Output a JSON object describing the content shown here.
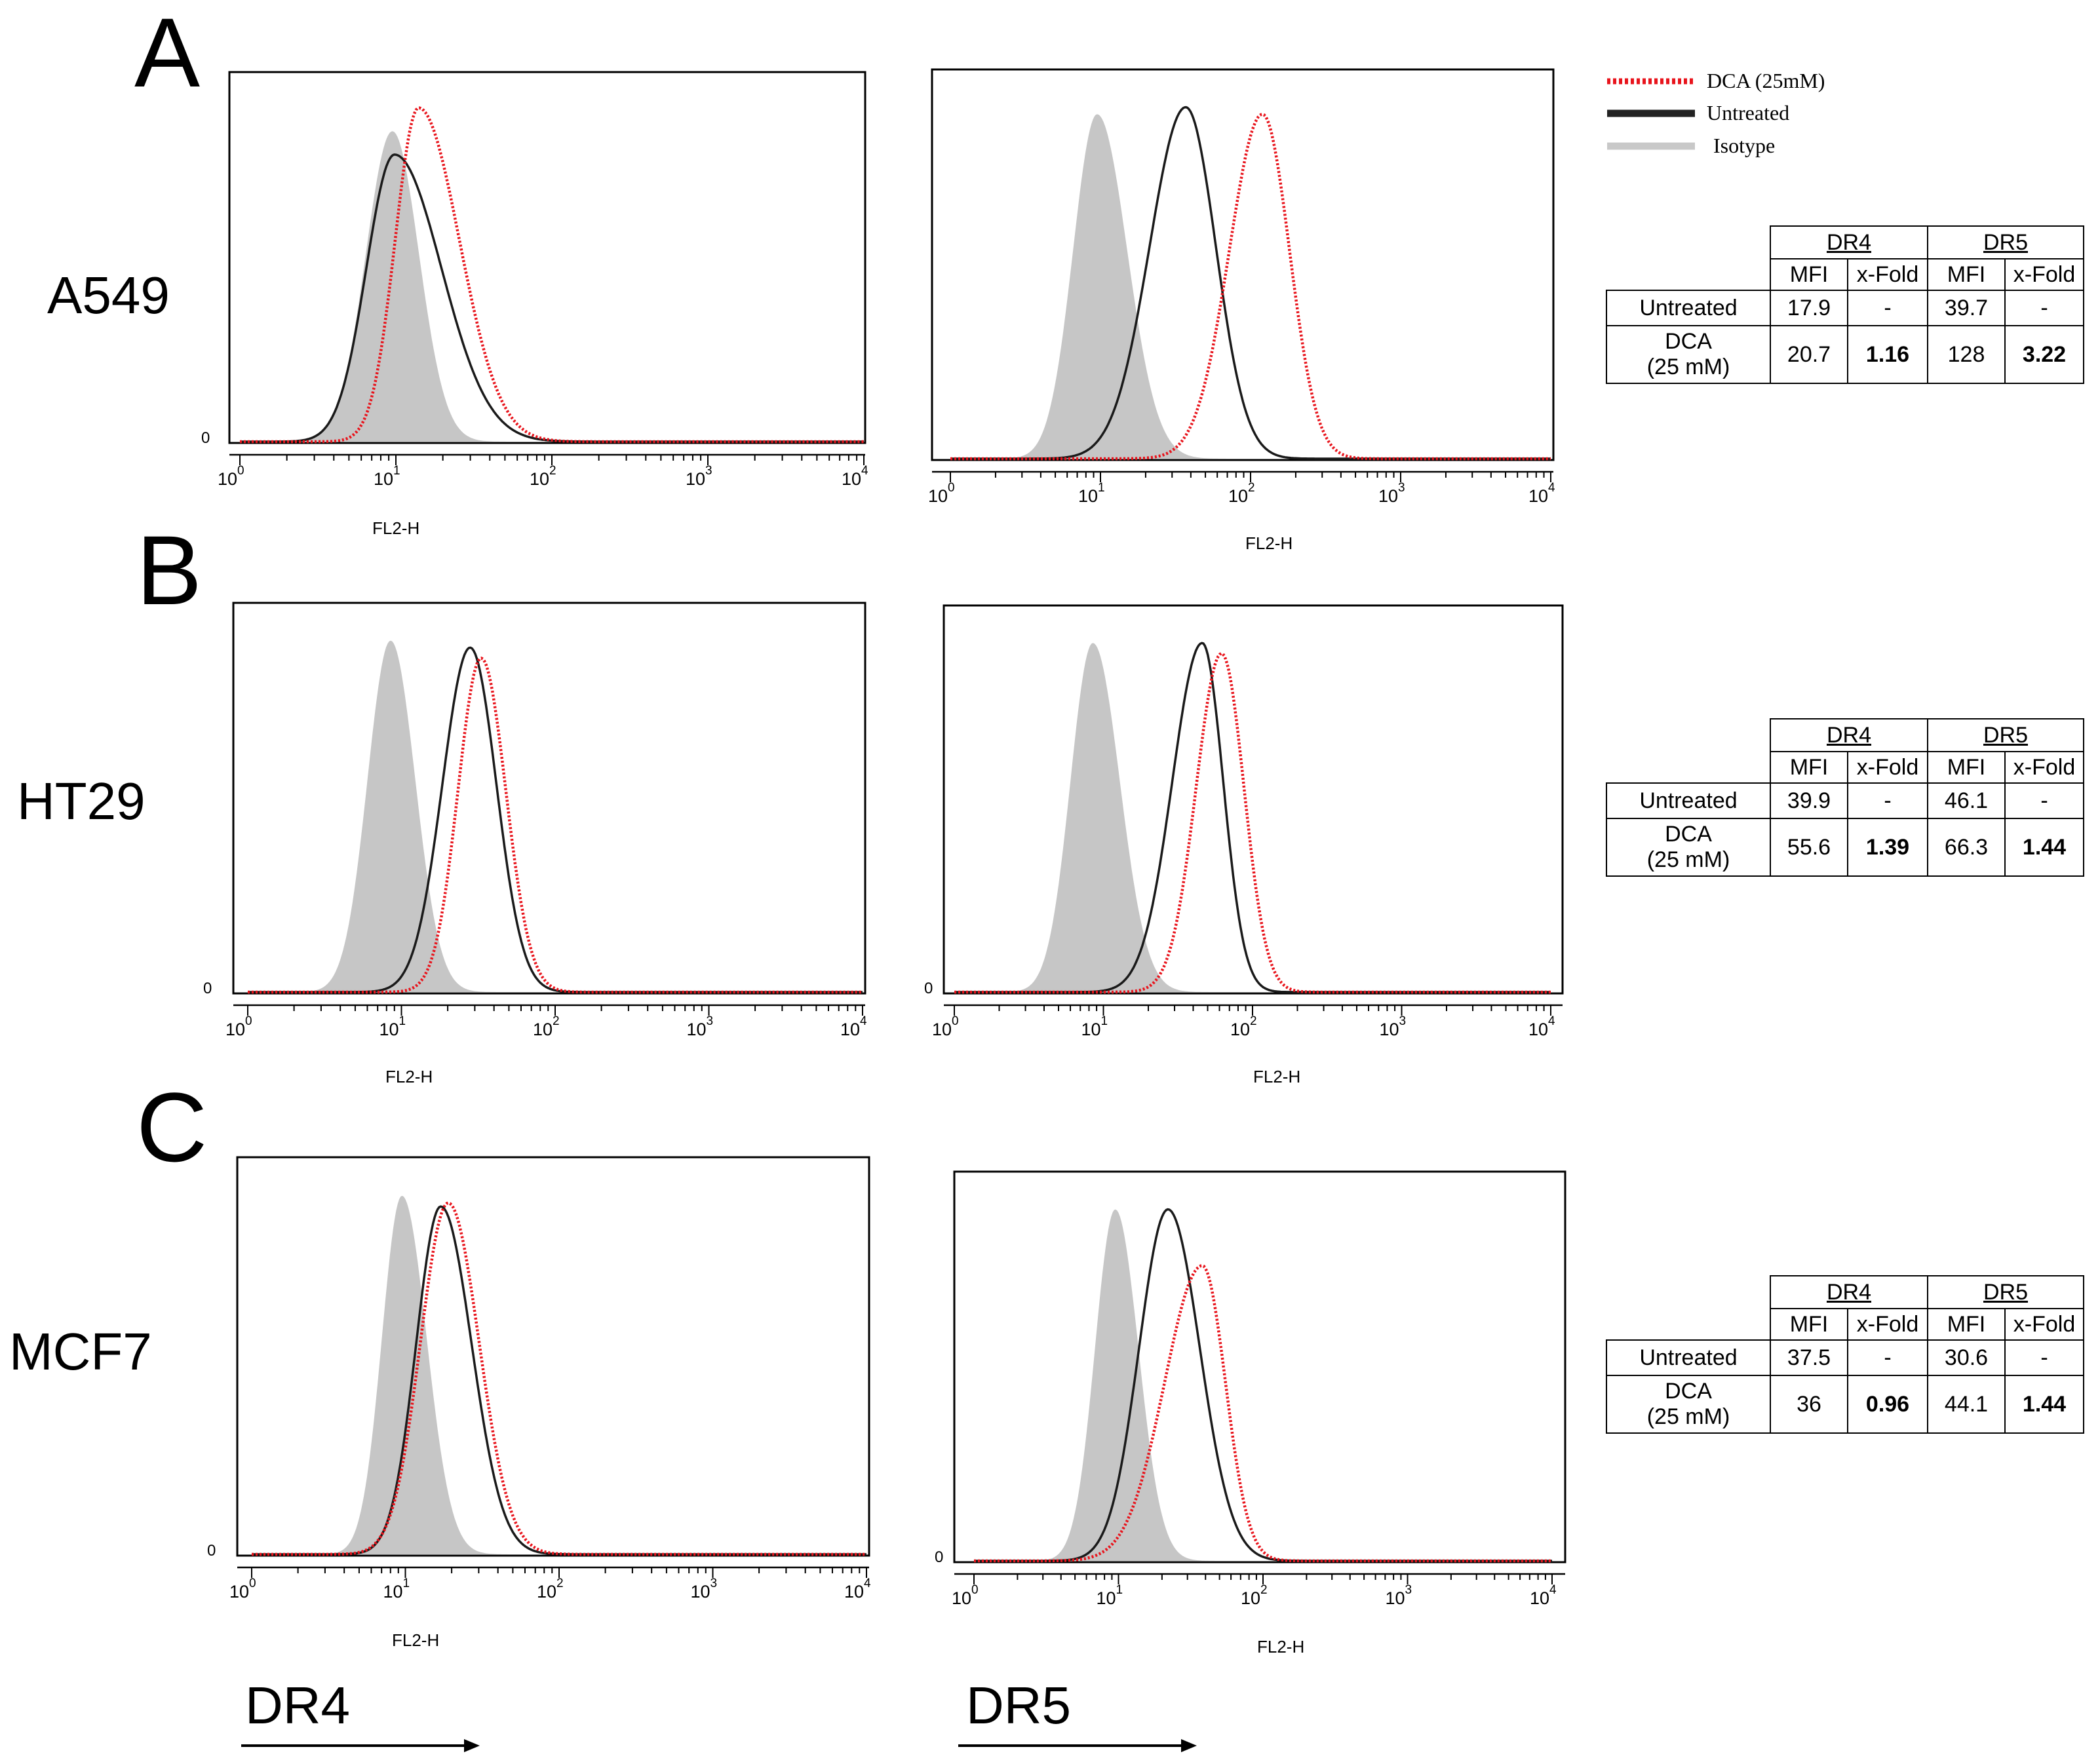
{
  "figure": {
    "panels": [
      {
        "letter": "A",
        "cell_line": "A549"
      },
      {
        "letter": "B",
        "cell_line": "HT29"
      },
      {
        "letter": "C",
        "cell_line": "MCF7"
      }
    ],
    "bottom_labels": {
      "dr4": "DR4",
      "dr5": "DR5"
    }
  },
  "legend": [
    {
      "label": "DCA (25mM)",
      "style": "dotted",
      "color": "#e8141c"
    },
    {
      "label": "Untreated",
      "style": "solid",
      "color": "#222222"
    },
    {
      "label": "Isotype",
      "style": "filled",
      "color": "#c8c8c8"
    }
  ],
  "colors": {
    "dca": "#e8141c",
    "untreated": "#1a1a1a",
    "isotype": "#c6c6c6"
  },
  "chart_data": [
    {
      "id": "A-DR4",
      "type": "area",
      "xlabel": "FL2-H",
      "xscale": "log",
      "xlim": [
        1,
        10000
      ],
      "xticks": [
        "10^0",
        "10^1",
        "10^2",
        "10^3",
        "10^4"
      ],
      "ylabel_zero": "0",
      "series": [
        {
          "name": "Isotype",
          "peak": 9.5,
          "height": 0.93,
          "width_low": 0.17,
          "width_high": 0.17
        },
        {
          "name": "Untreated",
          "peak": 9.8,
          "height": 0.86,
          "width_low": 0.18,
          "width_high": 0.3
        },
        {
          "name": "DCA (25mM)",
          "peak": 14,
          "height": 1.0,
          "width_low": 0.15,
          "width_high": 0.26
        }
      ]
    },
    {
      "id": "A-DR5",
      "type": "area",
      "xlabel": "FL2-H",
      "xscale": "log",
      "xlim": [
        1,
        10000
      ],
      "xticks": [
        "10^0",
        "10^1",
        "10^2",
        "10^3",
        "10^4"
      ],
      "ylabel_zero": "",
      "series": [
        {
          "name": "Isotype",
          "peak": 9.5,
          "height": 0.98,
          "width_low": 0.16,
          "width_high": 0.2
        },
        {
          "name": "Untreated",
          "peak": 37,
          "height": 1.0,
          "width_low": 0.24,
          "width_high": 0.2
        },
        {
          "name": "DCA (25mM)",
          "peak": 120,
          "height": 0.98,
          "width_low": 0.22,
          "width_high": 0.18
        }
      ]
    },
    {
      "id": "B-DR4",
      "type": "area",
      "xlabel": "FL2-H",
      "xscale": "log",
      "xlim": [
        1,
        10000
      ],
      "xticks": [
        "10^0",
        "10^1",
        "10^2",
        "10^3",
        "10^4"
      ],
      "ylabel_zero": "0",
      "series": [
        {
          "name": "Isotype",
          "peak": 8.5,
          "height": 1.0,
          "width_low": 0.15,
          "width_high": 0.16
        },
        {
          "name": "Untreated",
          "peak": 28,
          "height": 0.98,
          "width_low": 0.18,
          "width_high": 0.17
        },
        {
          "name": "DCA (25mM)",
          "peak": 33,
          "height": 0.95,
          "width_low": 0.15,
          "width_high": 0.16
        }
      ]
    },
    {
      "id": "B-DR5",
      "type": "area",
      "xlabel": "FL2-H",
      "xscale": "log",
      "xlim": [
        1,
        10000
      ],
      "xticks": [
        "10^0",
        "10^1",
        "10^2",
        "10^3",
        "10^4"
      ],
      "ylabel_zero": "0",
      "series": [
        {
          "name": "Isotype",
          "peak": 8.5,
          "height": 1.0,
          "width_low": 0.15,
          "width_high": 0.18
        },
        {
          "name": "Untreated",
          "peak": 46,
          "height": 1.0,
          "width_low": 0.2,
          "width_high": 0.14
        },
        {
          "name": "DCA (25mM)",
          "peak": 62,
          "height": 0.97,
          "width_low": 0.17,
          "width_high": 0.15
        }
      ]
    },
    {
      "id": "C-DR4",
      "type": "area",
      "xlabel": "FL2-H",
      "xscale": "log",
      "xlim": [
        1,
        10000
      ],
      "xticks": [
        "10^0",
        "10^1",
        "10^2",
        "10^3",
        "10^4"
      ],
      "ylabel_zero": "0",
      "series": [
        {
          "name": "Isotype",
          "peak": 9.5,
          "height": 1.0,
          "width_low": 0.13,
          "width_high": 0.16
        },
        {
          "name": "Untreated",
          "peak": 17,
          "height": 0.97,
          "width_low": 0.16,
          "width_high": 0.2
        },
        {
          "name": "DCA (25mM)",
          "peak": 19,
          "height": 0.98,
          "width_low": 0.18,
          "width_high": 0.2
        }
      ]
    },
    {
      "id": "C-DR5",
      "type": "area",
      "xlabel": "FL2-H",
      "xscale": "log",
      "xlim": [
        1,
        10000
      ],
      "xticks": [
        "10^0",
        "10^1",
        "10^2",
        "10^3",
        "10^4"
      ],
      "ylabel_zero": "0",
      "series": [
        {
          "name": "Isotype",
          "peak": 9.5,
          "height": 1.0,
          "width_low": 0.14,
          "width_high": 0.16
        },
        {
          "name": "Untreated",
          "peak": 22,
          "height": 1.0,
          "width_low": 0.2,
          "width_high": 0.22
        },
        {
          "name": "DCA (25mM)",
          "peak": 38,
          "height": 0.84,
          "width_low": 0.26,
          "width_high": 0.16
        }
      ]
    }
  ],
  "tables": [
    {
      "id": "A",
      "groups": [
        "DR4",
        "DR5"
      ],
      "subheaders": [
        "MFI",
        "x-Fold",
        "MFI",
        "x-Fold"
      ],
      "rows": [
        {
          "label": "Untreated",
          "label2": "",
          "values": [
            "17.9",
            "-",
            "39.7",
            "-"
          ]
        },
        {
          "label": "DCA",
          "label2": "(25 mM)",
          "values": [
            "20.7",
            "1.16",
            "128",
            "3.22"
          ]
        }
      ]
    },
    {
      "id": "B",
      "groups": [
        "DR4",
        "DR5"
      ],
      "subheaders": [
        "MFI",
        "x-Fold",
        "MFI",
        "x-Fold"
      ],
      "rows": [
        {
          "label": "Untreated",
          "label2": "",
          "values": [
            "39.9",
            "-",
            "46.1",
            "-"
          ]
        },
        {
          "label": "DCA",
          "label2": "(25 mM)",
          "values": [
            "55.6",
            "1.39",
            "66.3",
            "1.44"
          ]
        }
      ]
    },
    {
      "id": "C",
      "groups": [
        "DR4",
        "DR5"
      ],
      "subheaders": [
        "MFI",
        "x-Fold",
        "MFI",
        "x-Fold"
      ],
      "rows": [
        {
          "label": "Untreated",
          "label2": "",
          "values": [
            "37.5",
            "-",
            "30.6",
            "-"
          ]
        },
        {
          "label": "DCA",
          "label2": "(25 mM)",
          "values": [
            "36",
            "0.96",
            "44.1",
            "1.44"
          ]
        }
      ]
    }
  ]
}
